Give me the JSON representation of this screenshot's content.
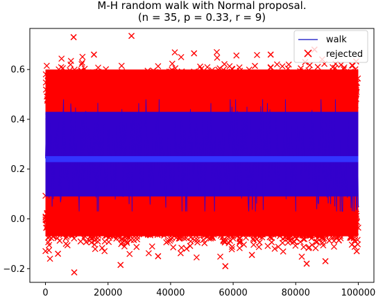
{
  "chart_data": {
    "type": "scatter",
    "title_line1": "M-H random walk with Normal proposal.",
    "title_line2": "(n = 35, p = 0.33, r = 9)",
    "xlim": [
      -5000,
      105000
    ],
    "ylim": [
      -0.255,
      0.765
    ],
    "x_ticks": [
      0,
      20000,
      40000,
      60000,
      80000,
      100000
    ],
    "y_ticks": [
      -0.2,
      0.0,
      0.2,
      0.4,
      0.6
    ],
    "y_tick_labels": [
      "−0.2",
      "0.0",
      "0.2",
      "0.4",
      "0.6"
    ],
    "legend": {
      "placement": "upper-right",
      "entries": [
        "walk",
        "rejected"
      ]
    },
    "series": [
      {
        "name": "walk",
        "style": "line",
        "color": "#3333cc",
        "x_range": [
          0,
          100000
        ],
        "center": 0.24,
        "band": [
          0.03,
          0.48
        ]
      },
      {
        "name": "rejected",
        "style": "x-marker",
        "color": "#ff0000",
        "x_range": [
          0,
          100000
        ],
        "band": [
          -0.08,
          0.62
        ],
        "outliers": [
          {
            "x": 9000,
            "y": 0.73
          },
          {
            "x": 27500,
            "y": 0.735
          },
          {
            "x": 9200,
            "y": -0.215
          },
          {
            "x": 24000,
            "y": -0.185
          },
          {
            "x": 57500,
            "y": -0.19
          },
          {
            "x": 83500,
            "y": -0.18
          },
          {
            "x": 89500,
            "y": -0.17
          },
          {
            "x": 15500,
            "y": 0.66
          },
          {
            "x": 47500,
            "y": 0.665
          },
          {
            "x": 72000,
            "y": 0.66
          },
          {
            "x": 86000,
            "y": 0.68
          },
          {
            "x": 4000,
            "y": -0.14
          },
          {
            "x": 36000,
            "y": -0.15
          },
          {
            "x": 66000,
            "y": -0.145
          },
          {
            "x": 99500,
            "y": -0.13
          }
        ]
      }
    ]
  }
}
